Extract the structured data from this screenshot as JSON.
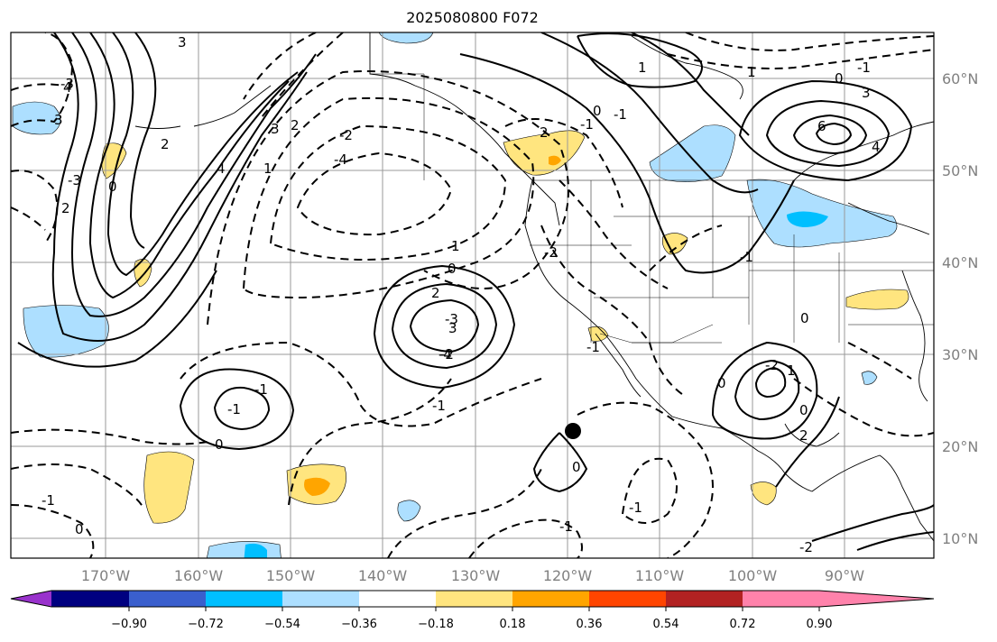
{
  "title": "2025080800 F072",
  "map": {
    "lon_labels": [
      "170°W",
      "160°W",
      "150°W",
      "140°W",
      "130°W",
      "120°W",
      "110°W",
      "100°W",
      "90°W"
    ],
    "lat_labels": [
      "60°N",
      "50°N",
      "40°N",
      "30°N",
      "20°N",
      "10°N"
    ],
    "contour_labels": [
      "3",
      "4",
      "3",
      "2",
      "0",
      "2",
      "4",
      "3",
      "2",
      "1",
      "0",
      "-1",
      "-3",
      "-2",
      "-3",
      "-4",
      "0",
      "1",
      "2",
      "3",
      "-3",
      "-4",
      "-2",
      "-1",
      "-1",
      "0",
      "-1",
      "2",
      "-2",
      "-1",
      "0",
      "-1",
      "1",
      "3",
      "6",
      "4",
      "1",
      "0",
      "-1",
      "-1",
      "0",
      "-1",
      "-2",
      "1",
      "0",
      "0",
      "2",
      "0",
      "-1",
      "-1",
      "-2"
    ]
  },
  "colorbar": {
    "colors": [
      "#9932CC",
      "#000080",
      "#3A5FCD",
      "#00BFFF",
      "#ADDFFF",
      "#FFFFFF",
      "#FFE57F",
      "#FFA500",
      "#FF4500",
      "#B22222",
      "#FF82AB"
    ],
    "tick_labels": [
      "−0.90",
      "−0.72",
      "−0.54",
      "−0.36",
      "−0.18",
      "0.18",
      "0.36",
      "0.54",
      "0.72",
      "0.90"
    ]
  }
}
